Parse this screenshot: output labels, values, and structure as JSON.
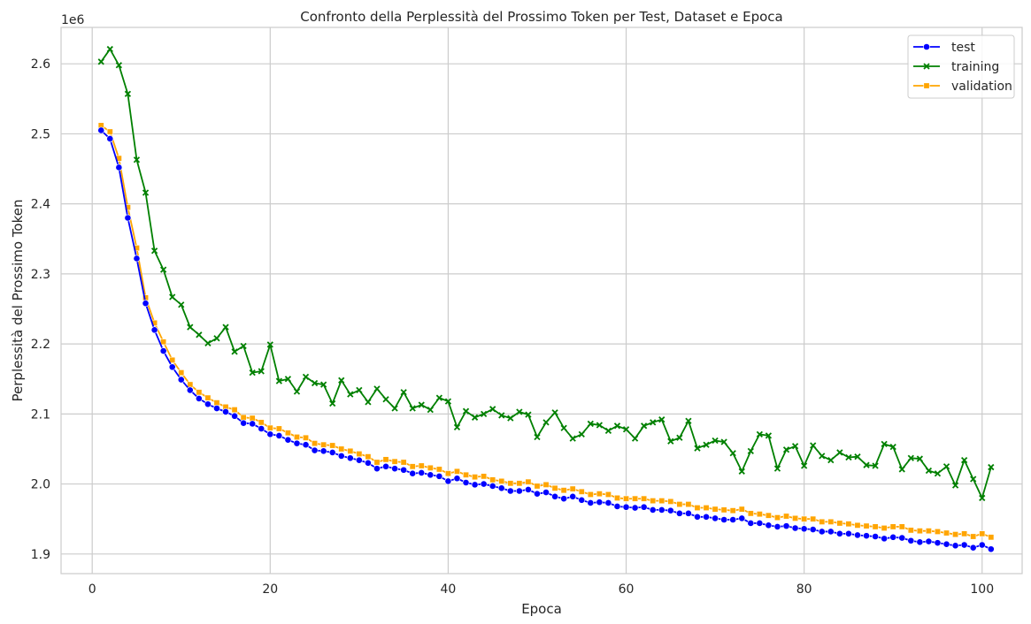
{
  "chart_data": {
    "type": "line",
    "title": "Confronto della Perplessità del Prossimo Token per Test, Dataset e Epoca",
    "xlabel": "Epoca",
    "ylabel": "Perplessità del Prossimo Token",
    "offset_label": "1e6",
    "xlim": [
      -3.5,
      104.5
    ],
    "ylim": [
      1.872,
      2.652
    ],
    "xticks": [
      0,
      20,
      40,
      60,
      80,
      100
    ],
    "yticks": [
      1.9,
      2.0,
      2.1,
      2.2,
      2.3,
      2.4,
      2.5,
      2.6
    ],
    "ytick_labels": [
      "1.9",
      "2.0",
      "2.1",
      "2.2",
      "2.3",
      "2.4",
      "2.5",
      "2.6"
    ],
    "grid": true,
    "legend_position": "top-right",
    "series": [
      {
        "name": "test",
        "color": "#0000ff",
        "marker": "circle",
        "values": [
          2.505,
          2.493,
          2.452,
          2.38,
          2.322,
          2.258,
          2.22,
          2.19,
          2.167,
          2.149,
          2.134,
          2.122,
          2.114,
          2.108,
          2.103,
          2.097,
          2.087,
          2.086,
          2.079,
          2.071,
          2.069,
          2.063,
          2.058,
          2.056,
          2.048,
          2.047,
          2.045,
          2.04,
          2.037,
          2.034,
          2.03,
          2.022,
          2.025,
          2.022,
          2.02,
          2.015,
          2.016,
          2.013,
          2.011,
          2.004,
          2.008,
          2.002,
          1.999,
          2.0,
          1.997,
          1.994,
          1.99,
          1.99,
          1.992,
          1.986,
          1.988,
          1.982,
          1.979,
          1.982,
          1.977,
          1.973,
          1.974,
          1.973,
          1.968,
          1.967,
          1.966,
          1.967,
          1.963,
          1.963,
          1.962,
          1.958,
          1.958,
          1.953,
          1.953,
          1.951,
          1.949,
          1.949,
          1.951,
          1.944,
          1.944,
          1.941,
          1.939,
          1.94,
          1.937,
          1.936,
          1.935,
          1.932,
          1.932,
          1.929,
          1.929,
          1.927,
          1.926,
          1.925,
          1.922,
          1.924,
          1.923,
          1.919,
          1.917,
          1.918,
          1.916,
          1.914,
          1.912,
          1.913,
          1.909,
          1.913,
          1.907
        ]
      },
      {
        "name": "training",
        "color": "#008000",
        "marker": "x",
        "values": [
          2.603,
          2.621,
          2.598,
          2.557,
          2.463,
          2.416,
          2.333,
          2.306,
          2.267,
          2.256,
          2.224,
          2.213,
          2.201,
          2.208,
          2.224,
          2.189,
          2.197,
          2.159,
          2.161,
          2.199,
          2.147,
          2.15,
          2.132,
          2.153,
          2.144,
          2.142,
          2.115,
          2.148,
          2.128,
          2.134,
          2.117,
          2.136,
          2.121,
          2.108,
          2.131,
          2.108,
          2.113,
          2.106,
          2.123,
          2.118,
          2.081,
          2.104,
          2.095,
          2.1,
          2.107,
          2.098,
          2.094,
          2.103,
          2.099,
          2.067,
          2.088,
          2.102,
          2.08,
          2.065,
          2.071,
          2.086,
          2.084,
          2.076,
          2.083,
          2.078,
          2.065,
          2.083,
          2.088,
          2.092,
          2.061,
          2.066,
          2.09,
          2.051,
          2.056,
          2.062,
          2.06,
          2.044,
          2.018,
          2.047,
          2.071,
          2.069,
          2.022,
          2.049,
          2.054,
          2.026,
          2.055,
          2.04,
          2.034,
          2.045,
          2.038,
          2.039,
          2.027,
          2.026,
          2.057,
          2.053,
          2.021,
          2.037,
          2.036,
          2.019,
          2.015,
          2.025,
          1.998,
          2.034,
          2.007,
          1.98,
          2.024
        ]
      },
      {
        "name": "validation",
        "color": "#ffa500",
        "marker": "square",
        "values": [
          2.512,
          2.503,
          2.465,
          2.395,
          2.337,
          2.266,
          2.23,
          2.203,
          2.177,
          2.159,
          2.142,
          2.131,
          2.123,
          2.116,
          2.11,
          2.106,
          2.095,
          2.094,
          2.088,
          2.08,
          2.079,
          2.073,
          2.067,
          2.066,
          2.058,
          2.056,
          2.055,
          2.05,
          2.047,
          2.043,
          2.039,
          2.031,
          2.035,
          2.032,
          2.031,
          2.025,
          2.026,
          2.023,
          2.021,
          2.015,
          2.018,
          2.013,
          2.01,
          2.011,
          2.006,
          2.004,
          2.001,
          2.001,
          2.003,
          1.997,
          1.999,
          1.994,
          1.991,
          1.993,
          1.989,
          1.985,
          1.986,
          1.985,
          1.98,
          1.979,
          1.979,
          1.979,
          1.976,
          1.976,
          1.975,
          1.971,
          1.971,
          1.966,
          1.966,
          1.964,
          1.963,
          1.962,
          1.964,
          1.958,
          1.957,
          1.955,
          1.952,
          1.954,
          1.951,
          1.95,
          1.95,
          1.946,
          1.946,
          1.944,
          1.943,
          1.941,
          1.94,
          1.939,
          1.937,
          1.939,
          1.939,
          1.934,
          1.933,
          1.933,
          1.932,
          1.93,
          1.928,
          1.929,
          1.925,
          1.929,
          1.924
        ]
      }
    ]
  }
}
